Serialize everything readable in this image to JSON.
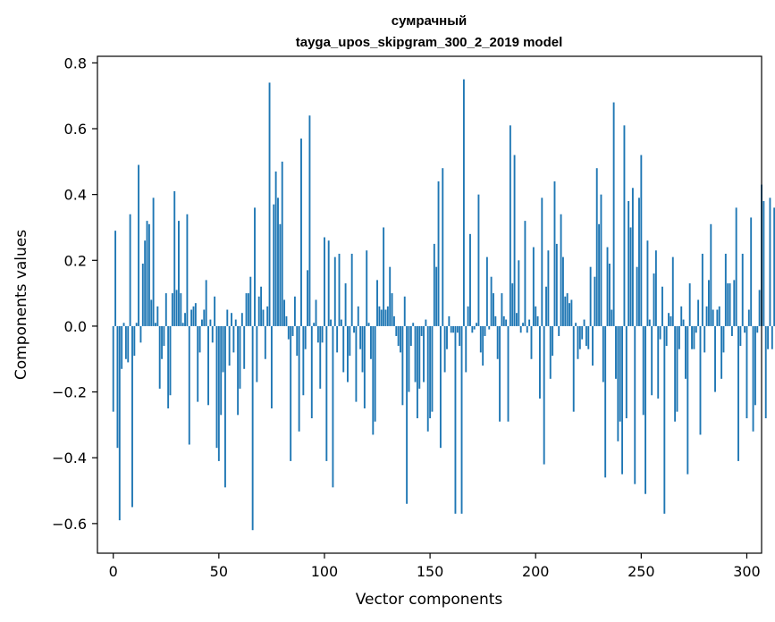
{
  "chart_data": {
    "type": "bar",
    "title": "сумрачный",
    "subtitle": "tayga_upos_skipgram_300_2_2019 model",
    "xlabel": "Vector components",
    "ylabel": "Components values",
    "xlim": [
      -7.5,
      307
    ],
    "ylim": [
      -0.69,
      0.82
    ],
    "xticks": [
      0,
      50,
      100,
      150,
      200,
      250,
      300
    ],
    "yticks": [
      -0.6,
      -0.4,
      -0.2,
      0.0,
      0.2,
      0.4,
      0.6,
      0.8
    ],
    "ytick_labels": [
      "−0.6",
      "−0.4",
      "−0.2",
      "0.0",
      "0.2",
      "0.4",
      "0.6",
      "0.8"
    ],
    "xtick_labels": [
      "0",
      "50",
      "100",
      "150",
      "200",
      "250",
      "300"
    ],
    "color": "#1f77b4",
    "values": [
      -0.26,
      0.29,
      -0.37,
      -0.59,
      -0.13,
      0.01,
      -0.1,
      -0.11,
      0.34,
      -0.55,
      -0.09,
      0.01,
      0.49,
      -0.05,
      0.19,
      0.26,
      0.32,
      0.31,
      0.08,
      0.39,
      0.01,
      0.06,
      -0.19,
      -0.1,
      -0.06,
      0.1,
      -0.25,
      -0.21,
      0.1,
      0.41,
      0.11,
      0.32,
      0.1,
      0.01,
      0.04,
      0.34,
      -0.36,
      0.05,
      0.06,
      0.07,
      -0.23,
      -0.08,
      0.02,
      0.05,
      0.14,
      -0.24,
      0.02,
      -0.05,
      0.09,
      -0.37,
      -0.41,
      -0.27,
      -0.14,
      -0.49,
      0.05,
      -0.12,
      0.04,
      -0.08,
      0.02,
      -0.27,
      -0.19,
      0.04,
      -0.13,
      0.1,
      0.1,
      0.15,
      -0.62,
      0.36,
      -0.17,
      0.09,
      0.12,
      0.05,
      -0.1,
      0.06,
      0.74,
      -0.25,
      0.37,
      0.47,
      0.39,
      0.31,
      0.5,
      0.08,
      0.03,
      -0.04,
      -0.41,
      -0.03,
      0.09,
      -0.09,
      -0.32,
      0.57,
      -0.21,
      -0.07,
      0.17,
      0.64,
      -0.28,
      0.01,
      0.08,
      -0.05,
      -0.19,
      -0.05,
      0.27,
      -0.41,
      0.26,
      0.02,
      -0.49,
      0.21,
      -0.08,
      0.22,
      0.02,
      -0.14,
      0.13,
      -0.17,
      -0.09,
      0.22,
      -0.02,
      -0.23,
      0.06,
      -0.07,
      -0.14,
      -0.25,
      0.23,
      0.01,
      -0.1,
      -0.33,
      -0.29,
      0.14,
      0.06,
      0.05,
      0.3,
      0.05,
      0.06,
      0.18,
      0.1,
      0.03,
      -0.03,
      -0.06,
      -0.08,
      -0.24,
      0.09,
      -0.54,
      -0.2,
      -0.06,
      0.01,
      -0.17,
      -0.28,
      -0.19,
      -0.03,
      -0.17,
      0.02,
      -0.32,
      -0.28,
      -0.26,
      0.25,
      0.18,
      0.44,
      -0.37,
      0.48,
      -0.14,
      -0.07,
      0.03,
      -0.02,
      -0.02,
      -0.57,
      -0.02,
      -0.06,
      -0.57,
      0.75,
      -0.14,
      0.06,
      0.28,
      -0.02,
      -0.01,
      0.01,
      0.4,
      -0.08,
      -0.12,
      -0.03,
      0.21,
      -0.01,
      0.15,
      0.1,
      0.03,
      -0.1,
      -0.29,
      0.1,
      0.03,
      0.02,
      -0.29,
      0.61,
      0.13,
      0.52,
      0.04,
      0.2,
      -0.02,
      0.01,
      0.32,
      -0.02,
      0.02,
      -0.1,
      0.24,
      0.06,
      0.03,
      -0.22,
      0.39,
      -0.42,
      0.12,
      0.23,
      -0.16,
      -0.09,
      0.44,
      0.25,
      -0.03,
      0.34,
      0.21,
      0.09,
      0.1,
      0.07,
      0.08,
      -0.26,
      0.01,
      -0.1,
      -0.07,
      -0.04,
      0.02,
      -0.06,
      -0.07,
      0.18,
      -0.12,
      0.15,
      0.48,
      0.31,
      0.4,
      -0.17,
      -0.46,
      0.24,
      0.19,
      0.05,
      0.68,
      -0.16,
      -0.35,
      -0.29,
      -0.45,
      0.61,
      -0.28,
      0.38,
      0.3,
      0.42,
      -0.48,
      0.18,
      0.39,
      0.52,
      -0.27,
      -0.51,
      0.26,
      0.02,
      -0.21,
      0.16,
      0.23,
      -0.22,
      -0.04,
      0.12,
      -0.57,
      -0.06,
      0.04,
      0.03,
      0.21,
      -0.29,
      -0.26,
      -0.07,
      0.06,
      0.02,
      -0.16,
      -0.45,
      0.13,
      -0.07,
      -0.07,
      -0.02,
      0.08,
      -0.33,
      0.22,
      -0.08,
      0.06,
      0.14,
      0.31,
      0.05,
      -0.2,
      0.05,
      0.06,
      -0.16,
      -0.08,
      0.22,
      0.13,
      0.13,
      -0.03,
      0.14,
      0.36,
      -0.41,
      -0.06,
      0.22,
      -0.02,
      -0.28,
      0.05,
      0.33,
      -0.32,
      -0.24,
      -0.02,
      0.11,
      0.43,
      0.38,
      -0.28,
      -0.07,
      0.39,
      -0.07,
      0.36,
      -0.07
    ]
  }
}
